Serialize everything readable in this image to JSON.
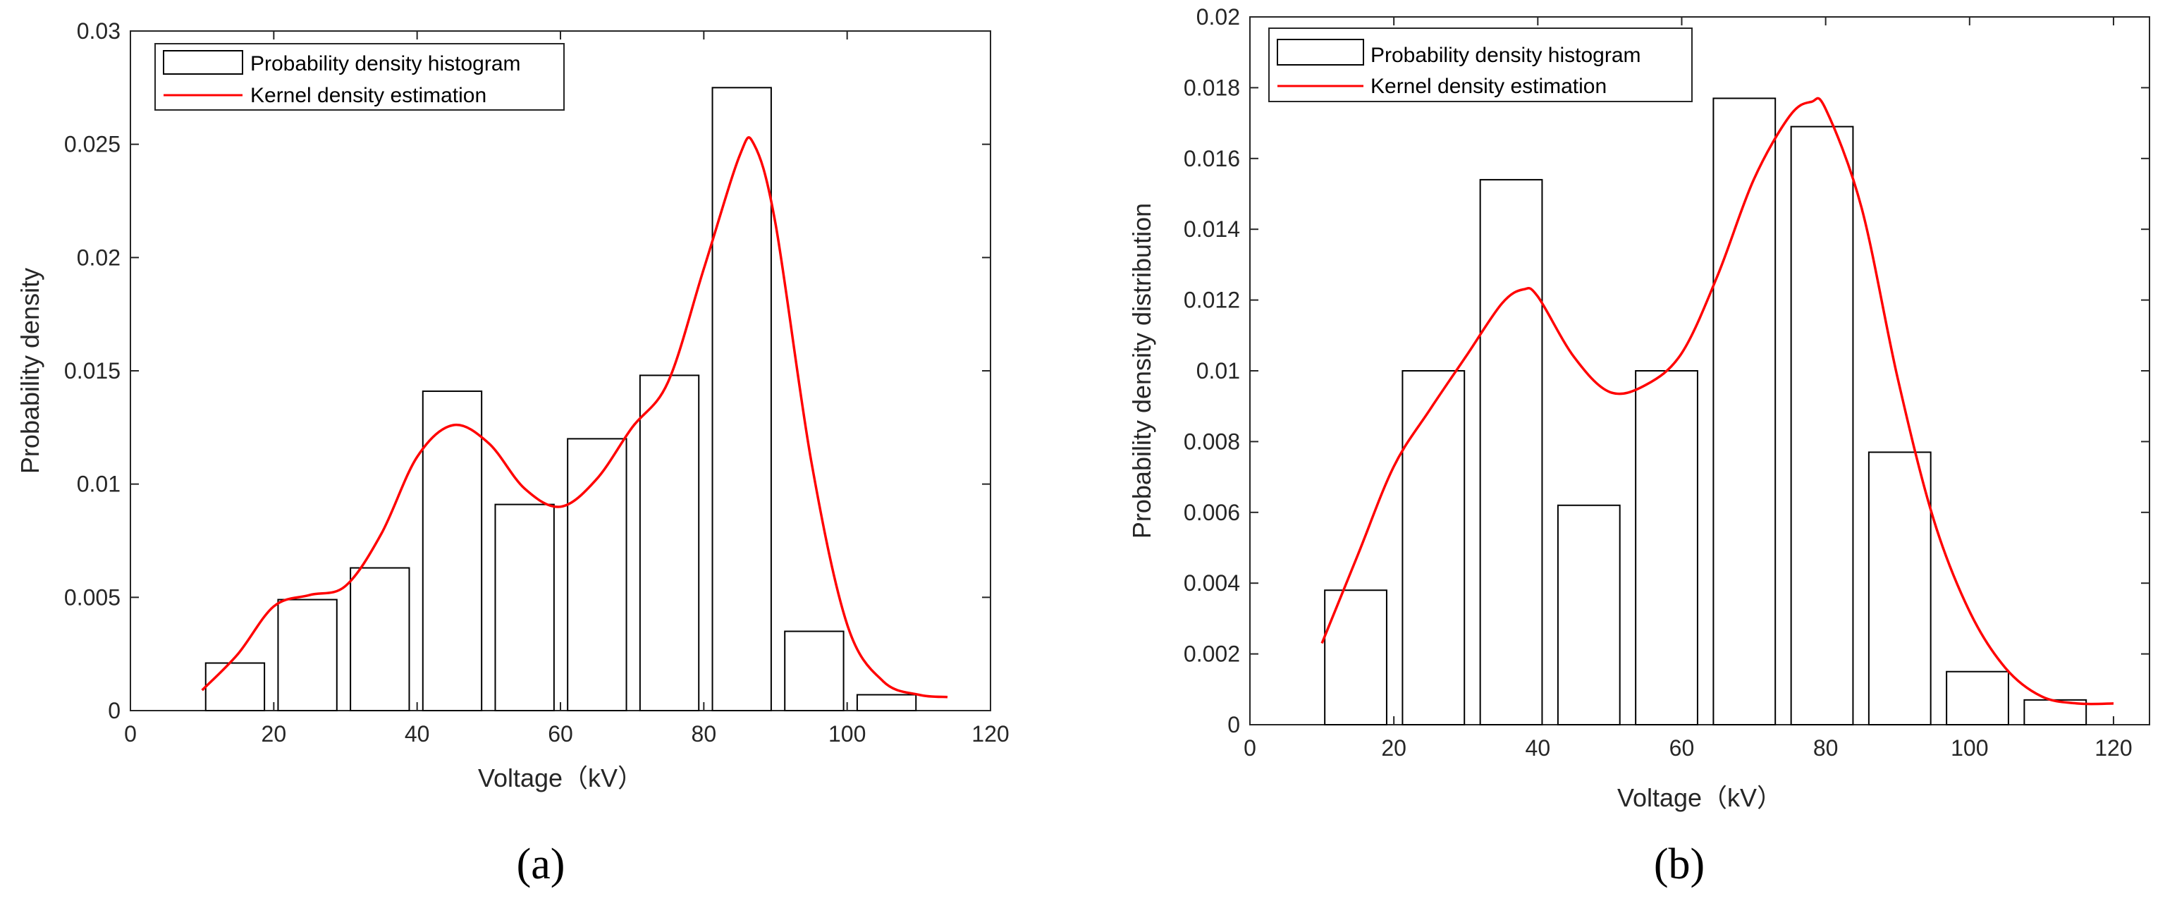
{
  "chart_data": [
    {
      "type": "bar",
      "panel_label": "(a)",
      "title": "",
      "xlabel": "Voltage（kV）",
      "ylabel": "Probability density",
      "xlim": [
        0,
        120
      ],
      "ylim": [
        0,
        0.03
      ],
      "xticks": [
        0,
        20,
        40,
        60,
        80,
        100,
        120
      ],
      "xtick_labels": [
        "0",
        "20",
        "40",
        "60",
        "80",
        "100",
        "120"
      ],
      "yticks": [
        0,
        0.005,
        0.01,
        0.015,
        0.02,
        0.025,
        0.03
      ],
      "ytick_labels": [
        "0",
        "0.005",
        "0.01",
        "0.015",
        "0.02",
        "0.025",
        "0.03"
      ],
      "legend": {
        "position": "top-left",
        "entries": [
          "Probability density histogram",
          "Kernel density estimation"
        ]
      },
      "series": [
        {
          "name": "Probability density histogram",
          "type": "histogram",
          "bins": [
            {
              "x0": 10.5,
              "x1": 18.7,
              "value": 0.0021
            },
            {
              "x0": 20.6,
              "x1": 28.8,
              "value": 0.0049
            },
            {
              "x0": 30.7,
              "x1": 38.9,
              "value": 0.0063
            },
            {
              "x0": 40.8,
              "x1": 49.0,
              "value": 0.0141
            },
            {
              "x0": 50.9,
              "x1": 59.1,
              "value": 0.0091
            },
            {
              "x0": 61.0,
              "x1": 69.2,
              "value": 0.012
            },
            {
              "x0": 71.1,
              "x1": 79.3,
              "value": 0.0148
            },
            {
              "x0": 81.2,
              "x1": 89.4,
              "value": 0.0275
            },
            {
              "x0": 91.3,
              "x1": 99.5,
              "value": 0.0035
            },
            {
              "x0": 101.4,
              "x1": 109.6,
              "value": 0.0007
            }
          ]
        },
        {
          "name": "Kernel density estimation",
          "type": "line",
          "color": "#ff0000",
          "x": [
            10,
            15,
            20,
            25,
            30,
            35,
            40,
            45,
            50,
            55,
            60,
            65,
            70,
            75,
            80,
            85,
            87,
            90,
            95,
            100,
            105,
            110,
            114
          ],
          "y": [
            0.0009,
            0.0025,
            0.0046,
            0.0051,
            0.0055,
            0.0078,
            0.0112,
            0.0126,
            0.0118,
            0.0098,
            0.009,
            0.0102,
            0.0125,
            0.0145,
            0.0195,
            0.0245,
            0.025,
            0.0215,
            0.011,
            0.0038,
            0.0013,
            0.0007,
            0.0006
          ]
        }
      ]
    },
    {
      "type": "bar",
      "panel_label": "(b)",
      "title": "",
      "xlabel": "Voltage（kV）",
      "ylabel": "Probability density distribution",
      "xlim": [
        0,
        125
      ],
      "ylim": [
        0,
        0.02
      ],
      "xticks": [
        0,
        20,
        40,
        60,
        80,
        100,
        120
      ],
      "xtick_labels": [
        "0",
        "20",
        "40",
        "60",
        "80",
        "100",
        "120"
      ],
      "yticks": [
        0,
        0.002,
        0.004,
        0.006,
        0.008,
        0.01,
        0.012,
        0.014,
        0.016,
        0.018,
        0.02
      ],
      "ytick_labels": [
        "0",
        "0.002",
        "0.004",
        "0.006",
        "0.008",
        "0.01",
        "0.012",
        "0.014",
        "0.016",
        "0.018",
        "0.02"
      ],
      "legend": {
        "position": "top-left",
        "entries": [
          "Probability density histogram",
          "Kernel density estimation"
        ]
      },
      "series": [
        {
          "name": "Probability density histogram",
          "type": "histogram",
          "bins": [
            {
              "x0": 10.4,
              "x1": 19.0,
              "value": 0.0038
            },
            {
              "x0": 21.2,
              "x1": 29.8,
              "value": 0.01
            },
            {
              "x0": 32.0,
              "x1": 40.6,
              "value": 0.0154
            },
            {
              "x0": 42.8,
              "x1": 51.4,
              "value": 0.0062
            },
            {
              "x0": 53.6,
              "x1": 62.2,
              "value": 0.01
            },
            {
              "x0": 64.4,
              "x1": 73.0,
              "value": 0.0177
            },
            {
              "x0": 75.2,
              "x1": 83.8,
              "value": 0.0169
            },
            {
              "x0": 86.0,
              "x1": 94.6,
              "value": 0.0077
            },
            {
              "x0": 96.8,
              "x1": 105.4,
              "value": 0.0015
            },
            {
              "x0": 107.6,
              "x1": 116.2,
              "value": 0.0007
            }
          ]
        },
        {
          "name": "Kernel density estimation",
          "type": "line",
          "color": "#ff0000",
          "x": [
            10,
            15,
            20,
            25,
            30,
            35,
            38,
            40,
            45,
            50,
            55,
            60,
            65,
            70,
            75,
            78,
            80,
            85,
            90,
            95,
            100,
            105,
            110,
            115,
            120
          ],
          "y": [
            0.0023,
            0.0048,
            0.0073,
            0.0089,
            0.0104,
            0.0119,
            0.0123,
            0.0121,
            0.0104,
            0.0094,
            0.0096,
            0.0105,
            0.0127,
            0.0154,
            0.0172,
            0.0176,
            0.0174,
            0.0146,
            0.0098,
            0.0058,
            0.0032,
            0.0016,
            0.0008,
            0.0006,
            0.0006
          ]
        }
      ]
    }
  ]
}
